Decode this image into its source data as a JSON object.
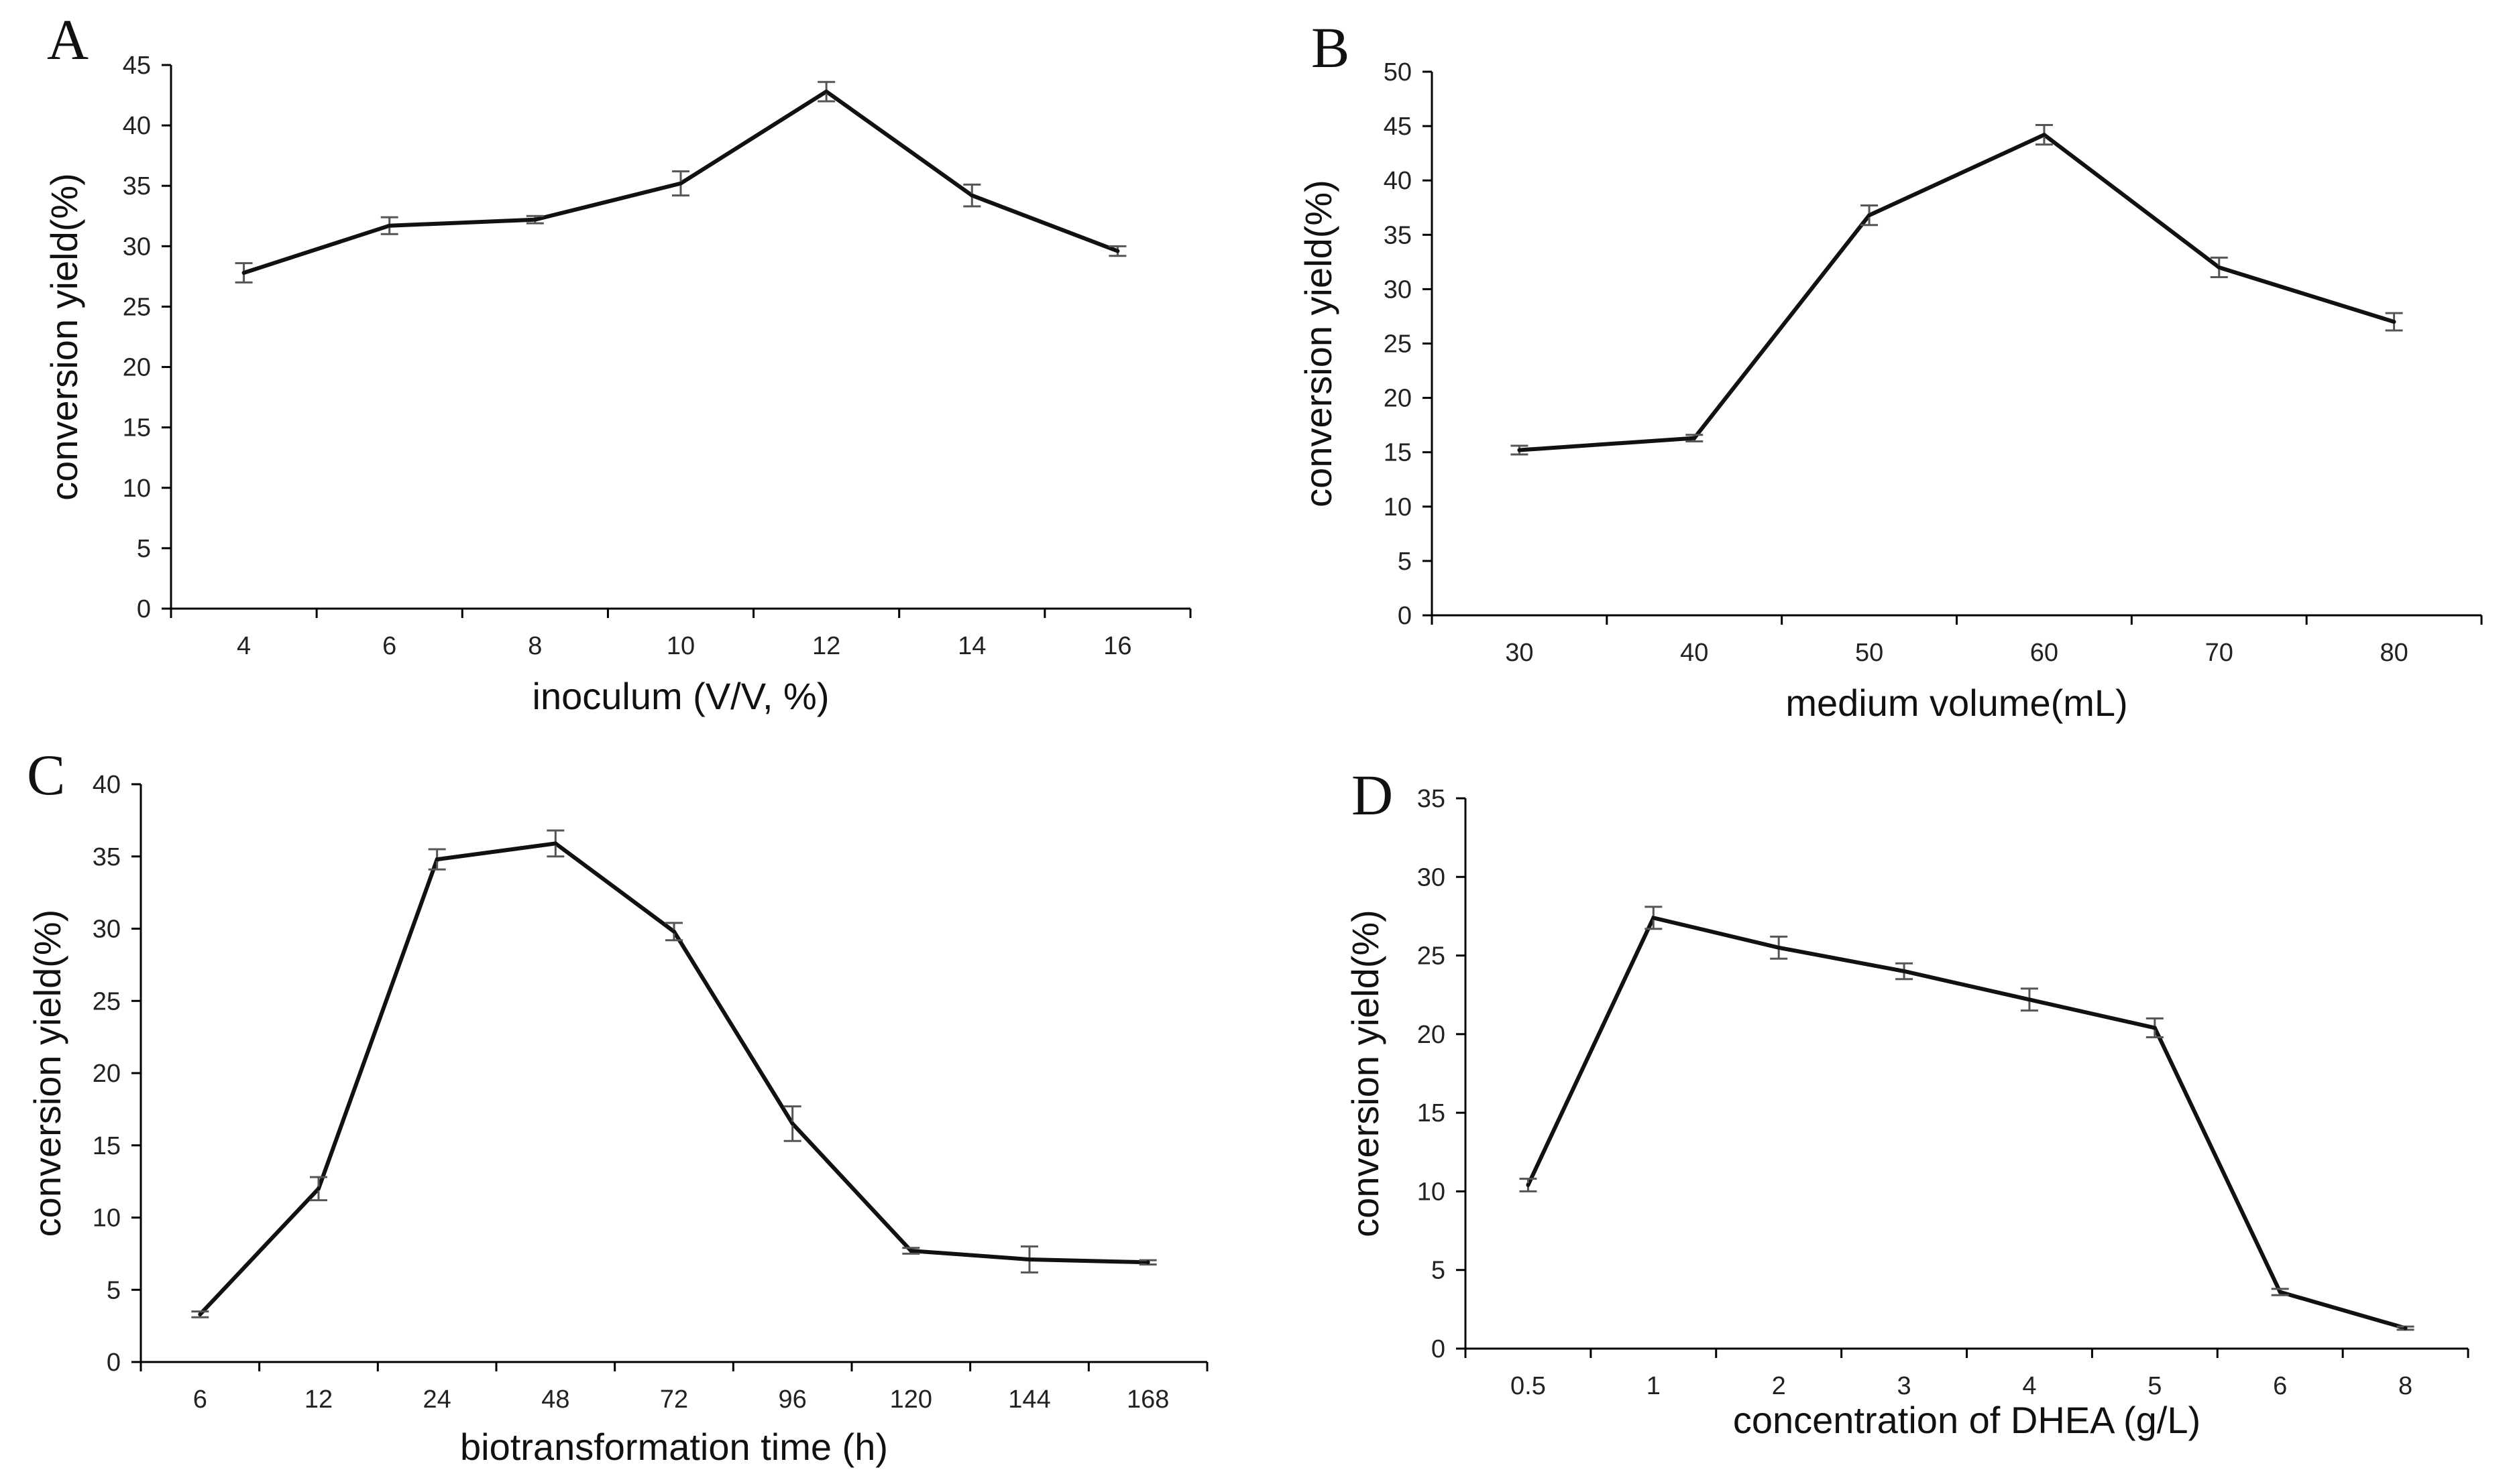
{
  "chart_data": [
    {
      "panel": "A",
      "type": "line",
      "categories": [
        "4",
        "6",
        "8",
        "10",
        "12",
        "14",
        "16"
      ],
      "values": [
        27.8,
        31.7,
        32.2,
        35.2,
        42.8,
        34.2,
        29.6
      ],
      "errors": [
        0.8,
        0.7,
        0.3,
        1.0,
        0.8,
        0.9,
        0.4
      ],
      "xlabel": "inoculum (V/V, %)",
      "ylabel": "conversion yield(%)",
      "ylim": [
        0,
        45
      ],
      "yticks": [
        "0",
        "5",
        "10",
        "15",
        "20",
        "25",
        "30",
        "35",
        "40",
        "45"
      ]
    },
    {
      "panel": "B",
      "type": "line",
      "categories": [
        "30",
        "40",
        "50",
        "60",
        "70",
        "80"
      ],
      "values": [
        15.2,
        16.3,
        36.8,
        44.2,
        32.0,
        27.0
      ],
      "errors": [
        0.4,
        0.3,
        0.9,
        0.9,
        0.9,
        0.8
      ],
      "xlabel": "medium volume(mL)",
      "ylabel": "conversion yield(%)",
      "ylim": [
        0,
        50
      ],
      "yticks": [
        "0",
        "5",
        "10",
        "15",
        "20",
        "25",
        "30",
        "35",
        "40",
        "45",
        "50"
      ]
    },
    {
      "panel": "C",
      "type": "line",
      "categories": [
        "6",
        "12",
        "24",
        "48",
        "72",
        "96",
        "120",
        "144",
        "168"
      ],
      "values": [
        3.3,
        12.0,
        34.8,
        35.9,
        29.8,
        16.5,
        7.7,
        7.1,
        6.9
      ],
      "errors": [
        0.2,
        0.8,
        0.7,
        0.9,
        0.6,
        1.2,
        0.2,
        0.9,
        0.15
      ],
      "xlabel": "biotransformation time (h)",
      "ylabel": "conversion yield(%)",
      "ylim": [
        0,
        40
      ],
      "yticks": [
        "0",
        "5",
        "10",
        "15",
        "20",
        "25",
        "30",
        "35",
        "40"
      ]
    },
    {
      "panel": "D",
      "type": "line",
      "categories": [
        "0.5",
        "1",
        "2",
        "3",
        "4",
        "5",
        "6",
        "8"
      ],
      "values": [
        10.4,
        27.4,
        25.5,
        24.0,
        22.2,
        20.4,
        3.6,
        1.3
      ],
      "errors": [
        0.4,
        0.7,
        0.7,
        0.5,
        0.7,
        0.6,
        0.2,
        0.1
      ],
      "xlabel": "concentration of DHEA (g/L)",
      "ylabel": "conversion yield(%)",
      "ylim": [
        0,
        35
      ],
      "yticks": [
        "0",
        "5",
        "10",
        "15",
        "20",
        "25",
        "30",
        "35"
      ]
    }
  ]
}
